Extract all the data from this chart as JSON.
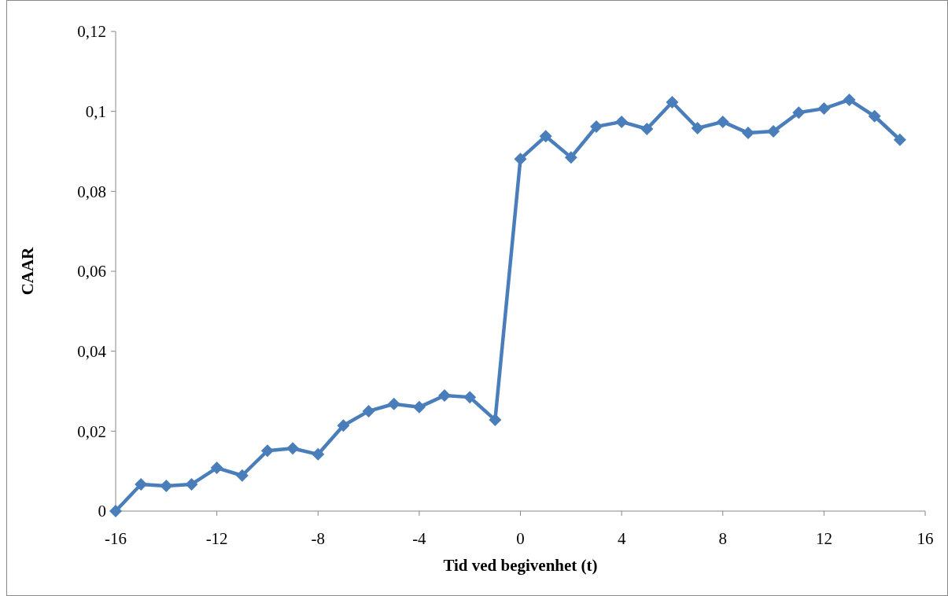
{
  "chart_data": {
    "type": "line",
    "xlabel": "Tid ved begivenhet (t)",
    "ylabel": "CAAR",
    "x": [
      -16,
      -15,
      -14,
      -13,
      -12,
      -11,
      -10,
      -9,
      -8,
      -7,
      -6,
      -5,
      -4,
      -3,
      -2,
      -1,
      0,
      1,
      2,
      3,
      4,
      5,
      6,
      7,
      8,
      9,
      10,
      11,
      12,
      13,
      14,
      15
    ],
    "series": [
      {
        "color": "#4a7ebb",
        "values": [
          0,
          0.0067,
          0.0063,
          0.0067,
          0.0108,
          0.0089,
          0.0151,
          0.0157,
          0.0142,
          0.0214,
          0.025,
          0.0268,
          0.026,
          0.0289,
          0.0285,
          0.0228,
          0.0881,
          0.0938,
          0.0885,
          0.0962,
          0.0974,
          0.0956,
          0.1023,
          0.0958,
          0.0974,
          0.0946,
          0.095,
          0.0997,
          0.1007,
          0.1029,
          0.0988,
          0.0929
        ]
      }
    ],
    "xlim": [
      -16,
      16
    ],
    "xticks": [
      -16,
      -12,
      -8,
      -4,
      0,
      4,
      8,
      12,
      16
    ],
    "ylim": [
      0,
      0.12
    ],
    "yticks": [
      0,
      {
        "value": 0.02,
        "label": "0,02"
      },
      {
        "value": 0.04,
        "label": "0,04"
      },
      {
        "value": 0.06,
        "label": "0,06"
      },
      {
        "value": 0.08,
        "label": "0,08"
      },
      {
        "value": 0.1,
        "label": "0,1"
      },
      {
        "value": 0.12,
        "label": "0,12"
      }
    ],
    "marker": "diamond",
    "line_style": "solid"
  }
}
